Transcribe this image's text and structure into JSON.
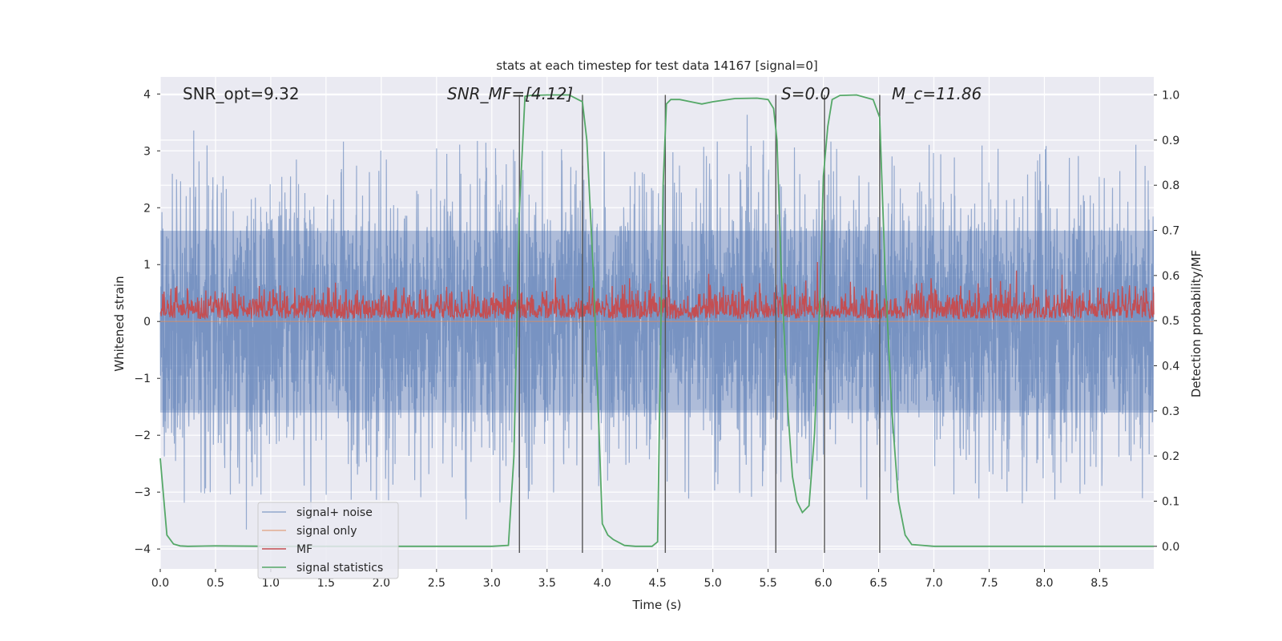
{
  "chart_data": {
    "type": "line",
    "title": "stats at each timestep for test data 14167 [signal=0]",
    "xlabel": "Time (s)",
    "ylabel_left": "Whitened strain",
    "ylabel_right": "Detection probability/MF",
    "xlim": [
      0,
      8.99
    ],
    "ylim_left": [
      -4.35,
      4.3
    ],
    "ylim_right": [
      -0.05,
      1.04
    ],
    "x_ticks": [
      0.0,
      0.5,
      1.0,
      1.5,
      2.0,
      2.5,
      3.0,
      3.5,
      4.0,
      4.5,
      5.0,
      5.5,
      6.0,
      6.5,
      7.0,
      7.5,
      8.0,
      8.5
    ],
    "x_tick_labels": [
      "0.0",
      "0.5",
      "1.0",
      "1.5",
      "2.0",
      "2.5",
      "3.0",
      "3.5",
      "4.0",
      "4.5",
      "5.0",
      "5.5",
      "6.0",
      "6.5",
      "7.0",
      "7.5",
      "8.0",
      "8.5"
    ],
    "y_left_ticks": [
      4,
      3,
      2,
      1,
      0,
      -1,
      -2,
      -3,
      -4
    ],
    "y_left_tick_labels": [
      "4",
      "3",
      "2",
      "1",
      "0",
      "−1",
      "−2",
      "−3",
      "−4"
    ],
    "y_right_ticks": [
      1.0,
      0.9,
      0.8,
      0.7,
      0.6,
      0.5,
      0.4,
      0.3,
      0.2,
      0.1,
      0.0
    ],
    "y_right_tick_labels": [
      "1.0",
      "0.9",
      "0.8",
      "0.7",
      "0.6",
      "0.5",
      "0.4",
      "0.3",
      "0.2",
      "0.1",
      "0.0"
    ],
    "grid": true,
    "legend_position": "lower-left",
    "annotations": [
      {
        "id": "snr-opt",
        "text": "SNR_opt=9.32"
      },
      {
        "id": "snr-mf",
        "text": "SNR_MF=[4.12]"
      },
      {
        "id": "s-value",
        "text": "S=0.0"
      },
      {
        "id": "mc-value",
        "text": "M_c=11.86"
      }
    ],
    "vertical_markers": [
      3.25,
      3.82,
      4.57,
      5.57,
      6.01,
      6.51
    ],
    "series": [
      {
        "name": "signal+ noise",
        "axis": "left",
        "color": "#4c72b0",
        "envelope": {
          "typical_low": -1.6,
          "typical_high": 1.6,
          "peak_low": -4.0,
          "peak_high": 3.95,
          "samples": 4096
        }
      },
      {
        "name": "signal only",
        "axis": "left",
        "color": "#dd8452",
        "values_constant": 0
      },
      {
        "name": "MF",
        "axis": "right",
        "color": "#c44e52",
        "envelope": {
          "base": 0.5,
          "typical_high": 0.58,
          "peak_high": 0.63,
          "samples": 2048
        }
      },
      {
        "name": "signal statistics",
        "axis": "right",
        "color": "#55a868",
        "x": [
          0.0,
          0.06,
          0.12,
          0.18,
          0.25,
          0.5,
          1.0,
          2.0,
          3.0,
          3.15,
          3.2,
          3.25,
          3.3,
          3.35,
          3.5,
          3.7,
          3.78,
          3.82,
          3.86,
          3.92,
          4.0,
          4.05,
          4.1,
          4.2,
          4.3,
          4.45,
          4.5,
          4.55,
          4.58,
          4.62,
          4.7,
          4.8,
          4.9,
          5.0,
          5.2,
          5.4,
          5.5,
          5.55,
          5.58,
          5.62,
          5.68,
          5.72,
          5.76,
          5.81,
          5.87,
          5.92,
          5.97,
          6.0,
          6.04,
          6.08,
          6.15,
          6.3,
          6.45,
          6.51,
          6.56,
          6.62,
          6.68,
          6.74,
          6.8,
          7.0,
          8.0,
          8.99
        ],
        "values": [
          0.195,
          0.025,
          0.005,
          0.001,
          0.0,
          0.001,
          0.0,
          0.0,
          0.0,
          0.002,
          0.2,
          0.75,
          0.997,
          0.999,
          1.0,
          1.0,
          0.99,
          0.985,
          0.9,
          0.6,
          0.05,
          0.025,
          0.015,
          0.002,
          0.0,
          0.0,
          0.01,
          0.8,
          0.98,
          0.99,
          0.99,
          0.985,
          0.98,
          0.985,
          0.992,
          0.993,
          0.99,
          0.97,
          0.9,
          0.6,
          0.3,
          0.155,
          0.1,
          0.075,
          0.09,
          0.25,
          0.55,
          0.82,
          0.93,
          0.99,
          0.999,
          1.0,
          0.99,
          0.95,
          0.6,
          0.3,
          0.1,
          0.025,
          0.004,
          0.0,
          0.0,
          0.0
        ]
      }
    ]
  }
}
